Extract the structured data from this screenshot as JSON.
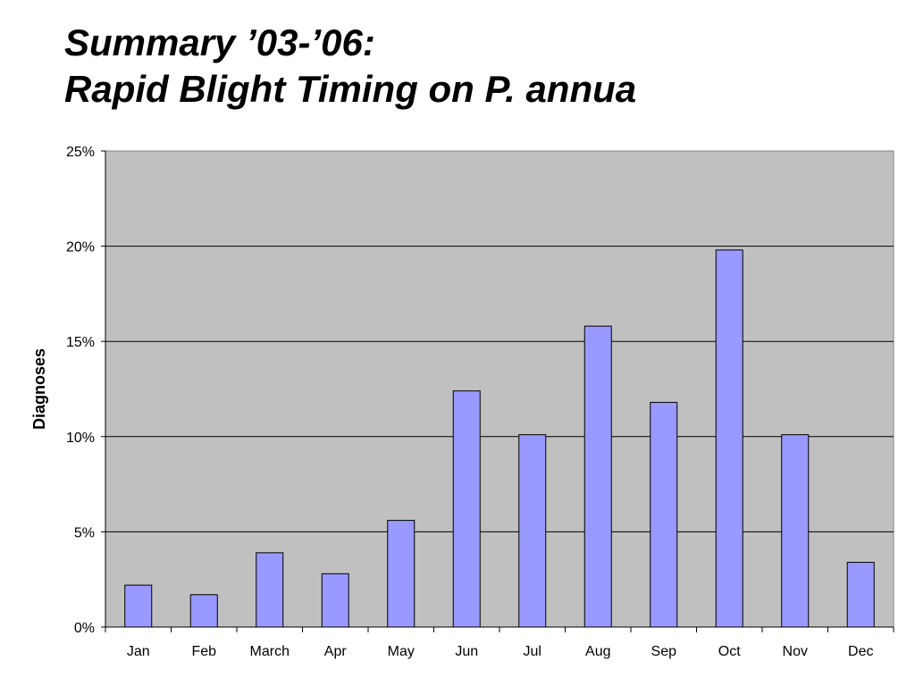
{
  "slide": {
    "title_line1": "Summary ’03-’06:",
    "title_line2": "Rapid Blight Timing on P. annua"
  },
  "chart_data": {
    "type": "bar",
    "title": "",
    "xlabel": "",
    "ylabel": "Diagnoses",
    "categories": [
      "Jan",
      "Feb",
      "March",
      "Apr",
      "May",
      "Jun",
      "Jul",
      "Aug",
      "Sep",
      "Oct",
      "Nov",
      "Dec"
    ],
    "values": [
      2.2,
      1.7,
      3.9,
      2.8,
      5.6,
      12.4,
      10.1,
      15.8,
      11.8,
      19.8,
      10.1,
      3.4
    ],
    "value_unit": "%",
    "ylim": [
      0,
      25
    ],
    "yticks": [
      "0%",
      "5%",
      "10%",
      "15%",
      "20%",
      "25%"
    ],
    "ytick_values": [
      0,
      5,
      10,
      15,
      20,
      25
    ],
    "grid": true,
    "legend": "none",
    "colors": {
      "bar_fill": "#9999ff",
      "bar_stroke": "#000000",
      "plot_background": "#c0c0c0",
      "gridline": "#000000"
    }
  }
}
